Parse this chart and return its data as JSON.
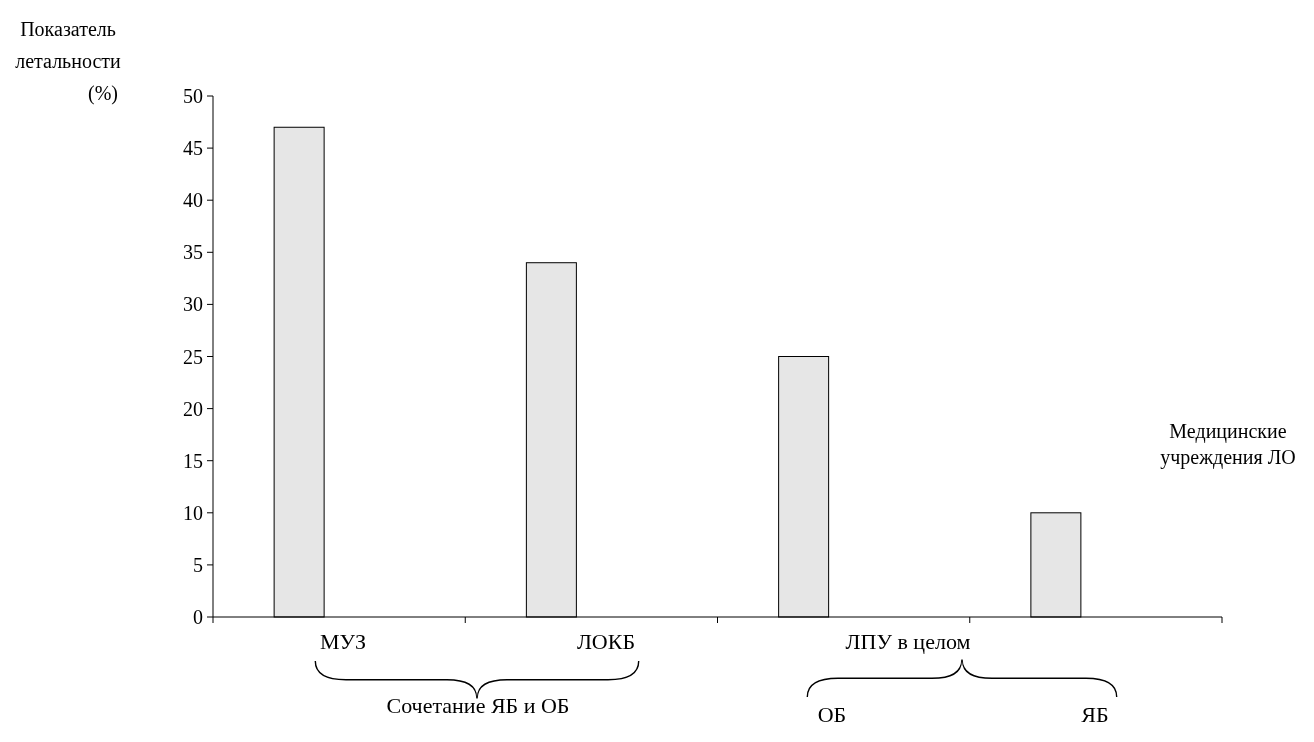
{
  "chart_data": {
    "type": "bar",
    "xlabel": "Медицинские учреждения ЛО",
    "ylabel": "Показатель летальности (%)",
    "categories": [
      "МУЗ",
      "ЛОКБ",
      "ЛПУ в целом",
      null
    ],
    "values": [
      47,
      34,
      25,
      10
    ],
    "color": "#e6e6e6",
    "ylim": [
      0,
      50
    ],
    "yticks": [
      0,
      5,
      10,
      15,
      20,
      25,
      30,
      35,
      40,
      45,
      50
    ],
    "grid": false,
    "annotations": [
      "Сочетание ЯБ и ОБ",
      "ОБ",
      "ЯБ"
    ]
  }
}
